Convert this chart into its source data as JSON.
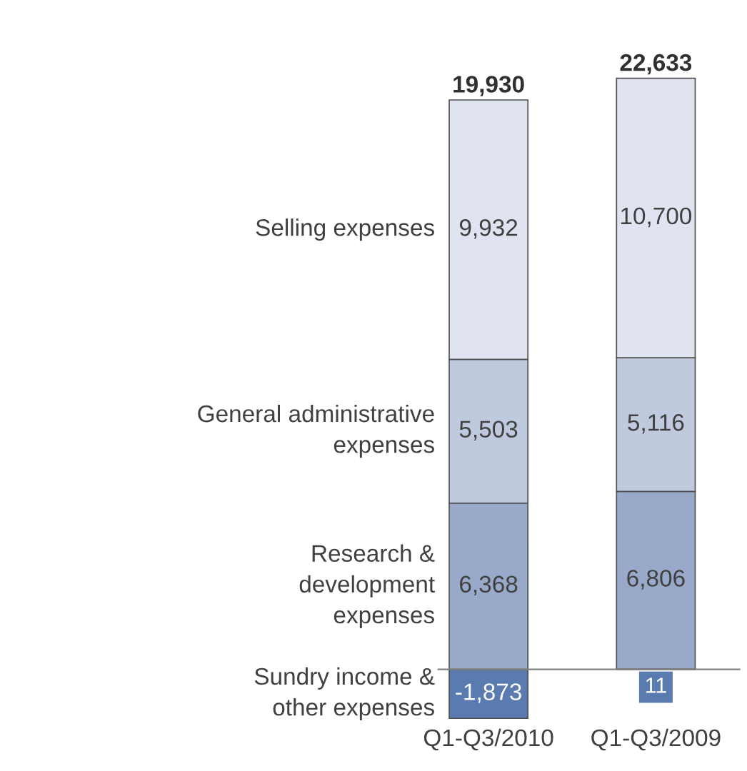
{
  "chart_data": {
    "type": "bar",
    "stacked": true,
    "data_labels": true,
    "legend": false,
    "grid": false,
    "categories": [
      "Q1-Q3/2010",
      "Q1-Q3/2009"
    ],
    "series": [
      {
        "name": "Sundry income &\nother expenses",
        "color": "#5a7bb0",
        "values": [
          -1873,
          11
        ],
        "value_labels": [
          "-1,873",
          "11"
        ]
      },
      {
        "name": "Research &\ndevelopment\nexpenses",
        "color": "#98a9c9",
        "values": [
          6368,
          6806
        ],
        "value_labels": [
          "6,368",
          "6,806"
        ]
      },
      {
        "name": "General administrative\nexpenses",
        "color": "#c0cadf",
        "values": [
          5503,
          5116
        ],
        "value_labels": [
          "5,503",
          "5,116"
        ]
      },
      {
        "name": "Selling expenses",
        "color": "#dfe4f0",
        "values": [
          9932,
          10700
        ],
        "value_labels": [
          "9,932",
          "10,700"
        ]
      }
    ],
    "totals": [
      "19,930",
      "22,633"
    ]
  }
}
